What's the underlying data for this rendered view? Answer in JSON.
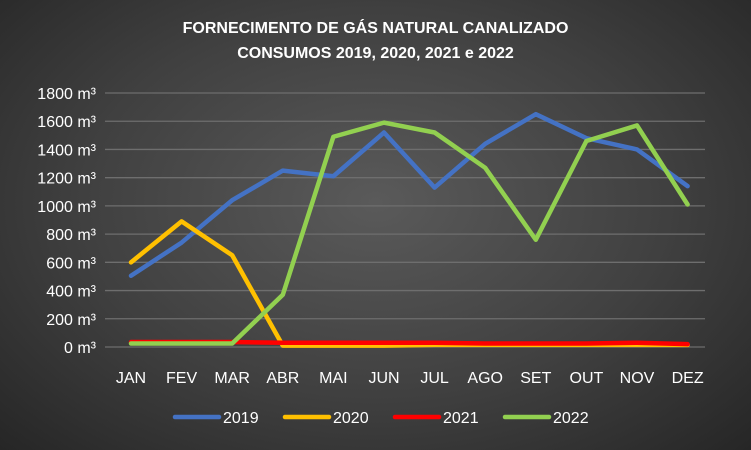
{
  "chart_data": {
    "type": "line",
    "title": "FORNECIMENTO DE GÁS NATURAL CANALIZADO",
    "subtitle": "CONSUMOS 2019, 2020, 2021 e 2022",
    "categories": [
      "JAN",
      "FEV",
      "MAR",
      "ABR",
      "MAI",
      "JUN",
      "JUL",
      "AGO",
      "SET",
      "OUT",
      "NOV",
      "DEZ"
    ],
    "ylim": [
      0,
      1800
    ],
    "yticks": [
      0,
      200,
      400,
      600,
      800,
      1000,
      1200,
      1400,
      1600,
      1800
    ],
    "ytick_labels": [
      "0 m³",
      "200 m³",
      "400 m³",
      "600 m³",
      "800 m³",
      "1000 m³",
      "1200 m³",
      "1400 m³",
      "1600 m³",
      "1800 m³"
    ],
    "grid": true,
    "legend_position": "bottom",
    "series": [
      {
        "name": "2019",
        "color": "#4472C4",
        "values": [
          505,
          740,
          1040,
          1250,
          1210,
          1520,
          1130,
          1440,
          1650,
          1480,
          1400,
          1140
        ]
      },
      {
        "name": "2020",
        "color": "#FFC000",
        "values": [
          600,
          890,
          650,
          10,
          10,
          10,
          15,
          15,
          15,
          15,
          15,
          15
        ]
      },
      {
        "name": "2021",
        "color": "#FF0000",
        "values": [
          35,
          35,
          35,
          30,
          30,
          30,
          30,
          25,
          25,
          25,
          30,
          20
        ]
      },
      {
        "name": "2022",
        "color": "#92D050",
        "values": [
          25,
          25,
          25,
          370,
          1490,
          1590,
          1520,
          1270,
          760,
          1460,
          1570,
          1010
        ]
      }
    ]
  }
}
